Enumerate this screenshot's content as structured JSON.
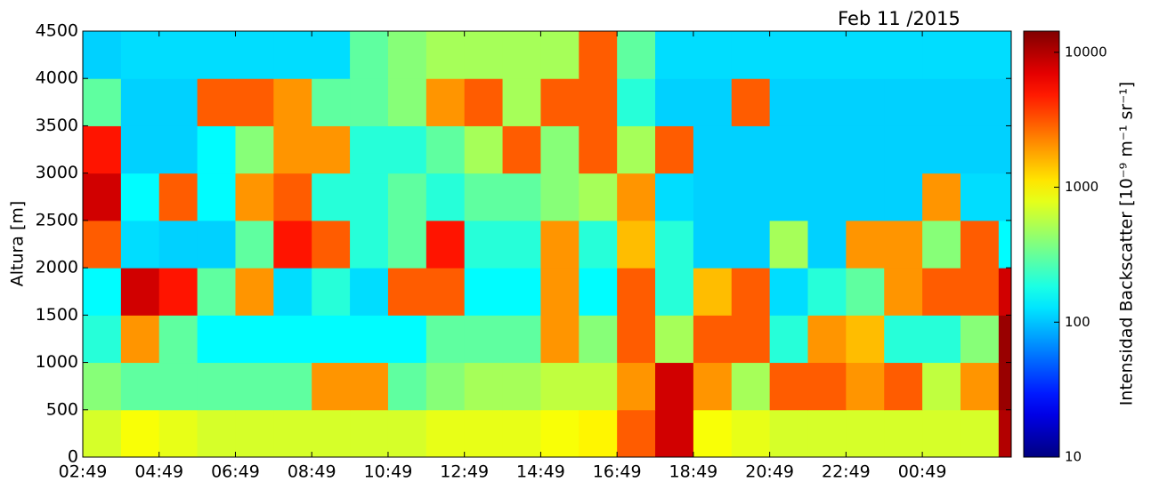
{
  "chart_data": {
    "type": "heatmap",
    "title": "Feb 11 /2015",
    "ylabel": "Altura [m]",
    "colorbar_label": "Intensidad Backscatter [10⁻⁹ m⁻¹ sr⁻¹]",
    "colormap": "jet",
    "color_scale": "log",
    "x_bins": [
      0,
      1,
      2,
      3,
      4,
      5,
      6,
      7,
      8,
      9,
      10,
      11,
      12,
      13,
      14,
      15,
      16,
      17,
      18,
      19,
      20,
      21,
      22,
      23,
      24,
      24.33
    ],
    "y_bins": [
      0,
      500,
      1000,
      1500,
      2000,
      2500,
      3000,
      3500,
      4000,
      4500
    ],
    "z": [
      [
        700,
        900,
        800,
        700,
        700,
        700,
        700,
        700,
        700,
        800,
        800,
        800,
        900,
        1000,
        3000,
        8000,
        900,
        800,
        700,
        700,
        700,
        700,
        700,
        700,
        10000
      ],
      [
        400,
        300,
        300,
        300,
        300,
        300,
        2000,
        2000,
        300,
        400,
        500,
        500,
        600,
        600,
        2000,
        8000,
        2000,
        500,
        3000,
        3000,
        2000,
        3000,
        600,
        2000,
        12000
      ],
      [
        200,
        2000,
        300,
        150,
        150,
        150,
        150,
        150,
        150,
        300,
        300,
        300,
        2000,
        400,
        3000,
        500,
        3000,
        3000,
        200,
        2000,
        1500,
        200,
        200,
        400,
        12000
      ],
      [
        150,
        8000,
        5000,
        300,
        2000,
        120,
        200,
        120,
        3000,
        3000,
        150,
        150,
        2000,
        150,
        3000,
        200,
        1500,
        3000,
        120,
        200,
        300,
        2000,
        3000,
        3000,
        8000
      ],
      [
        3000,
        120,
        110,
        110,
        300,
        5000,
        3000,
        200,
        300,
        5000,
        200,
        200,
        2000,
        200,
        1500,
        200,
        110,
        110,
        500,
        110,
        2000,
        2000,
        400,
        3000,
        150
      ],
      [
        8000,
        150,
        3000,
        150,
        2000,
        3000,
        200,
        200,
        300,
        200,
        300,
        300,
        400,
        500,
        2000,
        120,
        110,
        110,
        110,
        110,
        110,
        110,
        2000,
        120,
        120
      ],
      [
        5000,
        110,
        110,
        150,
        400,
        2000,
        2000,
        200,
        200,
        300,
        500,
        3000,
        400,
        3000,
        500,
        3000,
        110,
        110,
        110,
        110,
        110,
        110,
        110,
        110,
        110
      ],
      [
        300,
        110,
        110,
        3000,
        3000,
        2000,
        300,
        300,
        400,
        2000,
        3000,
        500,
        3000,
        3000,
        200,
        110,
        110,
        3000,
        110,
        110,
        110,
        110,
        110,
        110,
        110
      ],
      [
        110,
        120,
        120,
        120,
        120,
        120,
        120,
        300,
        400,
        500,
        500,
        500,
        500,
        3000,
        300,
        120,
        120,
        120,
        120,
        120,
        120,
        120,
        120,
        120,
        120
      ]
    ],
    "xlim": [
      0,
      24.33
    ],
    "ylim": [
      0,
      4500
    ],
    "zlim": [
      10,
      14350
    ],
    "xticks": [
      {
        "value": 0,
        "label": "02:49"
      },
      {
        "value": 2,
        "label": "04:49"
      },
      {
        "value": 4,
        "label": "06:49"
      },
      {
        "value": 6,
        "label": "08:49"
      },
      {
        "value": 8,
        "label": "10:49"
      },
      {
        "value": 10,
        "label": "12:49"
      },
      {
        "value": 12,
        "label": "14:49"
      },
      {
        "value": 14,
        "label": "16:49"
      },
      {
        "value": 16,
        "label": "18:49"
      },
      {
        "value": 18,
        "label": "20:49"
      },
      {
        "value": 20,
        "label": "22:49"
      },
      {
        "value": 22,
        "label": "00:49"
      }
    ],
    "yticks": [
      0,
      500,
      1000,
      1500,
      2000,
      2500,
      3000,
      3500,
      4000,
      4500
    ],
    "zticks": [
      10,
      100,
      1000,
      10000
    ]
  }
}
